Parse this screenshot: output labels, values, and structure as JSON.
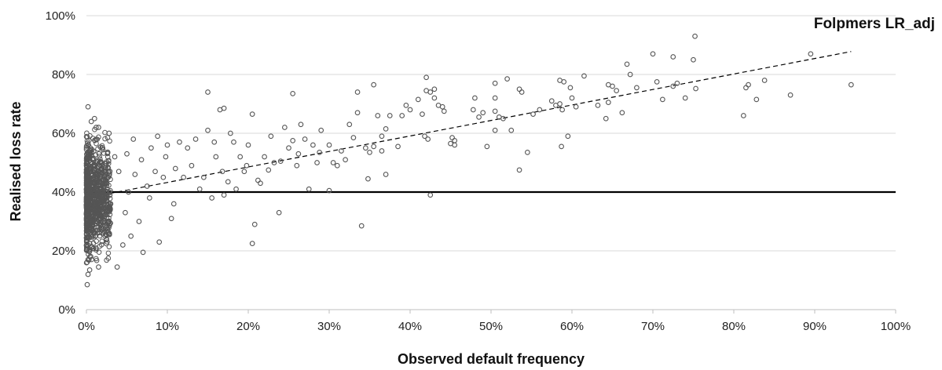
{
  "chart_data": {
    "type": "scatter",
    "title": "Folpmers LR_adj",
    "xlabel": "Observed default frequency",
    "ylabel": "Realised loss rate",
    "xlim": [
      0,
      1
    ],
    "ylim": [
      0,
      1
    ],
    "x_ticks": [
      "0%",
      "10%",
      "20%",
      "30%",
      "40%",
      "50%",
      "60%",
      "70%",
      "80%",
      "90%",
      "100%"
    ],
    "y_ticks": [
      "0%",
      "20%",
      "40%",
      "60%",
      "80%",
      "100%"
    ],
    "grid": "horizontal",
    "reference_line": {
      "style": "solid",
      "y": 0.4,
      "x_range": [
        0,
        1
      ]
    },
    "trend_line": {
      "style": "dashed",
      "x_range": [
        0,
        0.945
      ],
      "y_start": 0.38,
      "y_end": 0.878
    },
    "marker": {
      "shape": "open-circle",
      "color": "#555555"
    },
    "series": [
      {
        "values": [
          [
            0.15,
            0.74
          ],
          [
            0.165,
            0.68
          ],
          [
            0.17,
            0.685
          ],
          [
            0.255,
            0.735
          ],
          [
            0.42,
            0.79
          ],
          [
            0.355,
            0.765
          ],
          [
            0.52,
            0.785
          ],
          [
            0.505,
            0.77
          ],
          [
            0.615,
            0.795
          ],
          [
            0.585,
            0.78
          ],
          [
            0.59,
            0.775
          ],
          [
            0.668,
            0.835
          ],
          [
            0.7,
            0.87
          ],
          [
            0.725,
            0.86
          ],
          [
            0.752,
            0.93
          ],
          [
            0.75,
            0.85
          ],
          [
            0.895,
            0.87
          ],
          [
            0.945,
            0.765
          ],
          [
            0.838,
            0.78
          ],
          [
            0.818,
            0.765
          ],
          [
            0.815,
            0.755
          ],
          [
            0.812,
            0.66
          ],
          [
            0.828,
            0.715
          ],
          [
            0.87,
            0.73
          ],
          [
            0.753,
            0.752
          ],
          [
            0.73,
            0.77
          ],
          [
            0.725,
            0.76
          ],
          [
            0.74,
            0.72
          ],
          [
            0.712,
            0.715
          ],
          [
            0.705,
            0.775
          ],
          [
            0.68,
            0.755
          ],
          [
            0.672,
            0.8
          ],
          [
            0.65,
            0.76
          ],
          [
            0.645,
            0.765
          ],
          [
            0.655,
            0.745
          ],
          [
            0.645,
            0.705
          ],
          [
            0.642,
            0.65
          ],
          [
            0.662,
            0.67
          ],
          [
            0.632,
            0.695
          ],
          [
            0.6,
            0.72
          ],
          [
            0.598,
            0.755
          ],
          [
            0.595,
            0.59
          ],
          [
            0.575,
            0.71
          ],
          [
            0.58,
            0.695
          ],
          [
            0.585,
            0.7
          ],
          [
            0.588,
            0.68
          ],
          [
            0.587,
            0.555
          ],
          [
            0.605,
            0.69
          ],
          [
            0.56,
            0.68
          ],
          [
            0.552,
            0.665
          ],
          [
            0.545,
            0.535
          ],
          [
            0.535,
            0.75
          ],
          [
            0.538,
            0.74
          ],
          [
            0.515,
            0.65
          ],
          [
            0.525,
            0.61
          ],
          [
            0.535,
            0.475
          ],
          [
            0.51,
            0.655
          ],
          [
            0.505,
            0.72
          ],
          [
            0.505,
            0.675
          ],
          [
            0.505,
            0.61
          ],
          [
            0.49,
            0.67
          ],
          [
            0.495,
            0.555
          ],
          [
            0.485,
            0.655
          ],
          [
            0.48,
            0.72
          ],
          [
            0.478,
            0.68
          ],
          [
            0.455,
            0.575
          ],
          [
            0.455,
            0.56
          ],
          [
            0.452,
            0.585
          ],
          [
            0.45,
            0.565
          ],
          [
            0.442,
            0.675
          ],
          [
            0.44,
            0.69
          ],
          [
            0.435,
            0.695
          ],
          [
            0.43,
            0.75
          ],
          [
            0.43,
            0.72
          ],
          [
            0.425,
            0.74
          ],
          [
            0.42,
            0.745
          ],
          [
            0.41,
            0.715
          ],
          [
            0.415,
            0.665
          ],
          [
            0.418,
            0.59
          ],
          [
            0.422,
            0.58
          ],
          [
            0.425,
            0.39
          ],
          [
            0.4,
            0.68
          ],
          [
            0.395,
            0.695
          ],
          [
            0.39,
            0.66
          ],
          [
            0.385,
            0.555
          ],
          [
            0.375,
            0.66
          ],
          [
            0.37,
            0.615
          ],
          [
            0.36,
            0.66
          ],
          [
            0.365,
            0.59
          ],
          [
            0.365,
            0.54
          ],
          [
            0.37,
            0.46
          ],
          [
            0.355,
            0.555
          ],
          [
            0.35,
            0.535
          ],
          [
            0.348,
            0.445
          ],
          [
            0.345,
            0.55
          ],
          [
            0.34,
            0.285
          ],
          [
            0.335,
            0.74
          ],
          [
            0.335,
            0.67
          ],
          [
            0.33,
            0.585
          ],
          [
            0.325,
            0.63
          ],
          [
            0.32,
            0.51
          ],
          [
            0.315,
            0.54
          ],
          [
            0.31,
            0.49
          ],
          [
            0.305,
            0.5
          ],
          [
            0.3,
            0.56
          ],
          [
            0.3,
            0.405
          ],
          [
            0.29,
            0.61
          ],
          [
            0.288,
            0.535
          ],
          [
            0.285,
            0.5
          ],
          [
            0.28,
            0.56
          ],
          [
            0.275,
            0.41
          ],
          [
            0.27,
            0.58
          ],
          [
            0.265,
            0.63
          ],
          [
            0.262,
            0.53
          ],
          [
            0.26,
            0.49
          ],
          [
            0.255,
            0.575
          ],
          [
            0.25,
            0.55
          ],
          [
            0.245,
            0.62
          ],
          [
            0.24,
            0.505
          ],
          [
            0.238,
            0.33
          ],
          [
            0.232,
            0.5
          ],
          [
            0.228,
            0.59
          ],
          [
            0.225,
            0.475
          ],
          [
            0.22,
            0.52
          ],
          [
            0.215,
            0.43
          ],
          [
            0.212,
            0.44
          ],
          [
            0.208,
            0.29
          ],
          [
            0.205,
            0.665
          ],
          [
            0.205,
            0.225
          ],
          [
            0.2,
            0.56
          ],
          [
            0.198,
            0.49
          ],
          [
            0.195,
            0.47
          ],
          [
            0.19,
            0.52
          ],
          [
            0.185,
            0.41
          ],
          [
            0.182,
            0.57
          ],
          [
            0.178,
            0.6
          ],
          [
            0.175,
            0.435
          ],
          [
            0.17,
            0.39
          ],
          [
            0.168,
            0.47
          ],
          [
            0.16,
            0.52
          ],
          [
            0.158,
            0.57
          ],
          [
            0.155,
            0.38
          ],
          [
            0.15,
            0.61
          ],
          [
            0.145,
            0.45
          ],
          [
            0.14,
            0.41
          ],
          [
            0.135,
            0.58
          ],
          [
            0.13,
            0.49
          ],
          [
            0.125,
            0.55
          ],
          [
            0.12,
            0.45
          ],
          [
            0.115,
            0.57
          ],
          [
            0.11,
            0.48
          ],
          [
            0.108,
            0.36
          ],
          [
            0.105,
            0.31
          ],
          [
            0.1,
            0.56
          ],
          [
            0.098,
            0.52
          ],
          [
            0.095,
            0.45
          ],
          [
            0.09,
            0.23
          ],
          [
            0.088,
            0.59
          ],
          [
            0.085,
            0.47
          ],
          [
            0.08,
            0.55
          ],
          [
            0.078,
            0.38
          ],
          [
            0.075,
            0.42
          ],
          [
            0.07,
            0.195
          ],
          [
            0.068,
            0.51
          ],
          [
            0.065,
            0.3
          ],
          [
            0.06,
            0.46
          ],
          [
            0.058,
            0.58
          ],
          [
            0.055,
            0.25
          ],
          [
            0.052,
            0.4
          ],
          [
            0.05,
            0.53
          ],
          [
            0.048,
            0.33
          ],
          [
            0.045,
            0.22
          ],
          [
            0.04,
            0.47
          ],
          [
            0.038,
            0.145
          ],
          [
            0.035,
            0.52
          ],
          [
            0.03,
            0.36
          ],
          [
            0.028,
            0.6
          ],
          [
            0.025,
            0.24
          ],
          [
            0.022,
            0.43
          ],
          [
            0.02,
            0.55
          ],
          [
            0.018,
            0.31
          ],
          [
            0.015,
            0.145
          ],
          [
            0.012,
            0.62
          ],
          [
            0.01,
            0.49
          ],
          [
            0.008,
            0.27
          ],
          [
            0.005,
            0.55
          ],
          [
            0.003,
            0.2
          ],
          [
            0.002,
            0.69
          ],
          [
            0.001,
            0.085
          ],
          [
            0.002,
            0.12
          ],
          [
            0.004,
            0.135
          ],
          [
            0.002,
            0.17
          ],
          [
            0.006,
            0.64
          ],
          [
            0.01,
            0.65
          ],
          [
            0.015,
            0.62
          ]
        ]
      }
    ]
  }
}
